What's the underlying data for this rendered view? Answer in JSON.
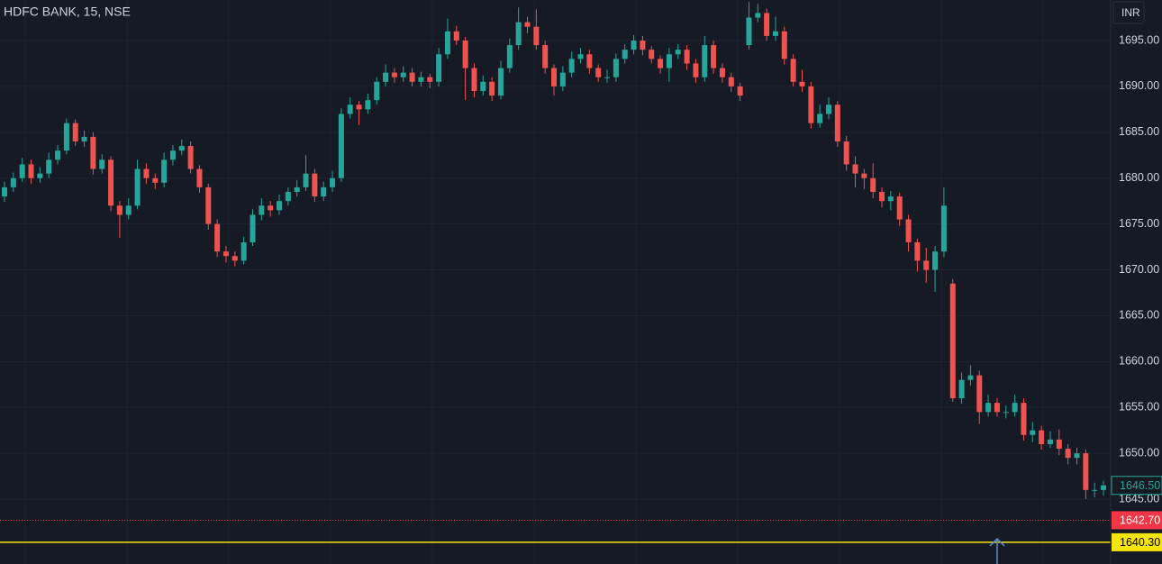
{
  "chart_data": {
    "type": "candlestick",
    "title": "HDFC BANK, 15, NSE",
    "currency": "INR",
    "up_color": "#26a69a",
    "down_color": "#ef5350",
    "ylim": [
      1637.93,
      1699.42
    ],
    "yticks": [
      {
        "value": 1695,
        "label": "1695.00"
      },
      {
        "value": 1690,
        "label": "1690.00"
      },
      {
        "value": 1685,
        "label": "1685.00"
      },
      {
        "value": 1680,
        "label": "1680.00"
      },
      {
        "value": 1675,
        "label": "1675.00"
      },
      {
        "value": 1670,
        "label": "1670.00"
      },
      {
        "value": 1665,
        "label": "1665.00"
      },
      {
        "value": 1660,
        "label": "1660.00"
      },
      {
        "value": 1655,
        "label": "1655.00"
      },
      {
        "value": 1650,
        "label": "1650.00"
      },
      {
        "value": 1645,
        "label": "1645.00"
      }
    ],
    "grid": true,
    "price_lines": [
      {
        "value": 1646.5,
        "label": "1646.50",
        "color": "#26a69a",
        "style": "box"
      },
      {
        "value": 1642.7,
        "label": "1642.70",
        "color": "#f23645",
        "style": "dotted"
      },
      {
        "value": 1640.3,
        "label": "1640.30",
        "color": "#f5e50a",
        "style": "solid"
      }
    ],
    "ohlc": [
      [
        1678,
        1679.6,
        1677.4,
        1679
      ],
      [
        1679,
        1680.6,
        1678.5,
        1680
      ],
      [
        1680,
        1682.2,
        1679.6,
        1681.5
      ],
      [
        1681.5,
        1682,
        1679.4,
        1680
      ],
      [
        1680,
        1681.2,
        1679.5,
        1680.5
      ],
      [
        1680.5,
        1682.8,
        1680,
        1682
      ],
      [
        1682,
        1683.6,
        1681.5,
        1683
      ],
      [
        1683,
        1686.5,
        1682.6,
        1686
      ],
      [
        1686,
        1686.4,
        1683.5,
        1684
      ],
      [
        1684,
        1685.2,
        1683.4,
        1684.5
      ],
      [
        1684.5,
        1685,
        1680.4,
        1681
      ],
      [
        1681,
        1682.6,
        1680.5,
        1682
      ],
      [
        1682,
        1682.4,
        1676.4,
        1677
      ],
      [
        1677,
        1677.5,
        1673.5,
        1676
      ],
      [
        1676,
        1677.8,
        1675.5,
        1677
      ],
      [
        1677,
        1682,
        1676.6,
        1681
      ],
      [
        1681,
        1681.6,
        1679.4,
        1680
      ],
      [
        1680,
        1680.5,
        1678.8,
        1679.5
      ],
      [
        1679.5,
        1682.8,
        1679,
        1682
      ],
      [
        1682,
        1683.6,
        1681.4,
        1683
      ],
      [
        1683,
        1684.2,
        1682.5,
        1683.5
      ],
      [
        1683.5,
        1684,
        1680.5,
        1681
      ],
      [
        1681,
        1681.4,
        1678.4,
        1679
      ],
      [
        1679,
        1679.4,
        1674.4,
        1675
      ],
      [
        1675,
        1675.5,
        1671.4,
        1672
      ],
      [
        1672,
        1672.6,
        1670.8,
        1671.5
      ],
      [
        1671.5,
        1672,
        1670.4,
        1671
      ],
      [
        1671,
        1673.6,
        1670.6,
        1673
      ],
      [
        1673,
        1676.6,
        1672.6,
        1676
      ],
      [
        1676,
        1677.8,
        1675.4,
        1677
      ],
      [
        1677,
        1677.5,
        1675.8,
        1676.5
      ],
      [
        1676.5,
        1678.2,
        1676,
        1677.5
      ],
      [
        1677.5,
        1679,
        1677,
        1678.5
      ],
      [
        1678.5,
        1679.8,
        1678,
        1679
      ],
      [
        1679,
        1682.5,
        1678.6,
        1680.5
      ],
      [
        1680.5,
        1681,
        1677.4,
        1678
      ],
      [
        1678,
        1679.6,
        1677.5,
        1679
      ],
      [
        1679,
        1680.8,
        1678.5,
        1680
      ],
      [
        1680,
        1687.6,
        1679.6,
        1687
      ],
      [
        1687,
        1688.8,
        1686.5,
        1688
      ],
      [
        1688,
        1688.4,
        1685.8,
        1687.5
      ],
      [
        1687.5,
        1689.2,
        1687,
        1688.5
      ],
      [
        1688.5,
        1691,
        1688,
        1690.5
      ],
      [
        1690.5,
        1692.4,
        1690,
        1691.5
      ],
      [
        1691.5,
        1692,
        1690.4,
        1691
      ],
      [
        1691,
        1692.2,
        1690.5,
        1691.5
      ],
      [
        1691.5,
        1692,
        1690,
        1690.5
      ],
      [
        1690.5,
        1691.6,
        1690,
        1691
      ],
      [
        1691,
        1691.4,
        1689.8,
        1690.5
      ],
      [
        1690.5,
        1694.2,
        1690,
        1693.5
      ],
      [
        1693.5,
        1697.4,
        1693,
        1696
      ],
      [
        1696,
        1696.6,
        1694.5,
        1695
      ],
      [
        1695,
        1695.4,
        1688.5,
        1692
      ],
      [
        1692,
        1692.5,
        1688.8,
        1689.5
      ],
      [
        1689.5,
        1691.2,
        1689,
        1690.5
      ],
      [
        1690.5,
        1691,
        1688.4,
        1689
      ],
      [
        1689,
        1692.8,
        1688.6,
        1692
      ],
      [
        1692,
        1695.2,
        1691.5,
        1694.5
      ],
      [
        1694.5,
        1698.6,
        1694,
        1697
      ],
      [
        1697,
        1697.6,
        1695.8,
        1696.5
      ],
      [
        1696.5,
        1698.4,
        1694,
        1694.5
      ],
      [
        1694.5,
        1695,
        1691.4,
        1692
      ],
      [
        1692,
        1692.4,
        1689,
        1690
      ],
      [
        1690,
        1692.2,
        1689.5,
        1691.5
      ],
      [
        1691.5,
        1693.8,
        1691,
        1693
      ],
      [
        1693,
        1694.2,
        1692.5,
        1693.5
      ],
      [
        1693.5,
        1694,
        1691.4,
        1692
      ],
      [
        1692,
        1692.4,
        1690.5,
        1691
      ],
      [
        1691,
        1691.8,
        1690.4,
        1691
      ],
      [
        1691,
        1693.6,
        1690.5,
        1693
      ],
      [
        1693,
        1694.6,
        1692.5,
        1694
      ],
      [
        1694,
        1695.6,
        1693.5,
        1695
      ],
      [
        1695,
        1695.5,
        1693.4,
        1694
      ],
      [
        1694,
        1694.4,
        1692.5,
        1693
      ],
      [
        1693,
        1693.4,
        1691.4,
        1692
      ],
      [
        1692,
        1694.2,
        1690.5,
        1693.5
      ],
      [
        1693.5,
        1694.6,
        1693,
        1694
      ],
      [
        1694,
        1694.5,
        1691.8,
        1692.5
      ],
      [
        1692.5,
        1693,
        1690.4,
        1691
      ],
      [
        1691,
        1695.5,
        1690.5,
        1694.5
      ],
      [
        1694.5,
        1695,
        1691.4,
        1692
      ],
      [
        1692,
        1692.5,
        1690.4,
        1691
      ],
      [
        1691,
        1691.5,
        1689.4,
        1690
      ],
      [
        1690,
        1690.4,
        1688.4,
        1689
      ],
      [
        1694.5,
        1699.2,
        1694,
        1697.5
      ],
      [
        1697.5,
        1699,
        1697,
        1698
      ],
      [
        1698,
        1698.5,
        1695,
        1695.5
      ],
      [
        1695.5,
        1697.6,
        1695,
        1696
      ],
      [
        1696,
        1696.5,
        1692.4,
        1693
      ],
      [
        1693,
        1693.5,
        1690,
        1690.5
      ],
      [
        1690.5,
        1691.8,
        1689.4,
        1690
      ],
      [
        1690,
        1690.5,
        1685.4,
        1686
      ],
      [
        1686,
        1688,
        1685.5,
        1687
      ],
      [
        1687,
        1688.8,
        1686.4,
        1688
      ],
      [
        1688,
        1688.4,
        1683.4,
        1684
      ],
      [
        1684,
        1684.6,
        1680.8,
        1681.5
      ],
      [
        1681.5,
        1682.4,
        1679,
        1680.5
      ],
      [
        1680.5,
        1681,
        1678.8,
        1680
      ],
      [
        1680,
        1681.6,
        1677.8,
        1678.5
      ],
      [
        1678.5,
        1679,
        1676.8,
        1677.5
      ],
      [
        1677.5,
        1678.6,
        1676.5,
        1678
      ],
      [
        1678,
        1678.4,
        1674.8,
        1675.5
      ],
      [
        1675.5,
        1676,
        1672,
        1673
      ],
      [
        1673,
        1673.4,
        1669.8,
        1671
      ],
      [
        1671,
        1672.4,
        1668.6,
        1670
      ],
      [
        1670,
        1672.6,
        1667.6,
        1672
      ],
      [
        1672,
        1679,
        1671.4,
        1677
      ],
      [
        1668.5,
        1669,
        1655.6,
        1656
      ],
      [
        1656,
        1658.8,
        1655.4,
        1658
      ],
      [
        1658,
        1659.6,
        1657.4,
        1658.5
      ],
      [
        1658.5,
        1659,
        1653.2,
        1654.5
      ],
      [
        1654.5,
        1656.4,
        1654,
        1655.5
      ],
      [
        1655.5,
        1656,
        1654,
        1654.5
      ],
      [
        1654.5,
        1655.2,
        1653.8,
        1654.5
      ],
      [
        1654.5,
        1656.4,
        1654,
        1655.5
      ],
      [
        1655.5,
        1656,
        1651.4,
        1652
      ],
      [
        1652,
        1653.4,
        1651.2,
        1652.5
      ],
      [
        1652.5,
        1653,
        1650.4,
        1651
      ],
      [
        1651,
        1652.4,
        1650.6,
        1651.5
      ],
      [
        1651.5,
        1652.6,
        1649.8,
        1650.5
      ],
      [
        1650.5,
        1651,
        1648.8,
        1649.5
      ],
      [
        1649.5,
        1650.6,
        1648.8,
        1650
      ],
      [
        1650,
        1650.4,
        1645,
        1646
      ],
      [
        1646,
        1646.8,
        1645.2,
        1646
      ],
      [
        1646,
        1647,
        1645.4,
        1646.5
      ]
    ]
  }
}
